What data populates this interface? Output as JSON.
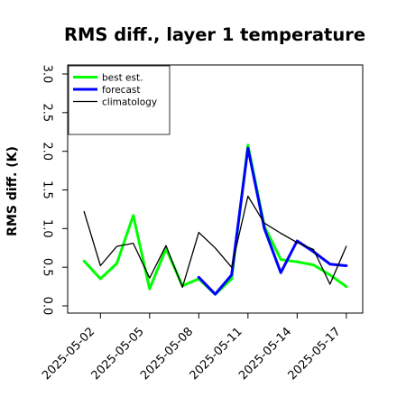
{
  "chart_data": {
    "type": "line",
    "title": "RMS diff., layer 1 temperature",
    "xlabel": "",
    "ylabel": "RMS diff. (K)",
    "x_tick_labels": [
      "2025-05-02",
      "2025-05-05",
      "2025-05-08",
      "2025-05-11",
      "2025-05-14",
      "2025-05-17"
    ],
    "highlighted_tick_label": "2025-05-08",
    "highlight_color": "#228B22",
    "y_ticks": [
      "0.0",
      "0.5",
      "1.0",
      "1.5",
      "2.0",
      "2.5",
      "3.0"
    ],
    "ylim": [
      0,
      3.05
    ],
    "xlim": [
      "2025-04-30",
      "2025-05-18"
    ],
    "legend_position": "top-left",
    "grid": false,
    "x_dates": [
      "2025-05-01",
      "2025-05-02",
      "2025-05-03",
      "2025-05-04",
      "2025-05-05",
      "2025-05-06",
      "2025-05-07",
      "2025-05-08",
      "2025-05-09",
      "2025-05-10",
      "2025-05-11",
      "2025-05-12",
      "2025-05-13",
      "2025-05-14",
      "2025-05-15",
      "2025-05-16",
      "2025-05-17"
    ],
    "series": [
      {
        "name": "best est.",
        "color": "#00ff00",
        "width": 3,
        "values": [
          0.58,
          0.35,
          0.55,
          1.17,
          0.22,
          0.74,
          0.26,
          0.35,
          0.15,
          0.35,
          2.08,
          1.03,
          0.6,
          0.57,
          0.53,
          0.4,
          0.25
        ]
      },
      {
        "name": "forecast",
        "color": "#0000ff",
        "width": 3,
        "values": [
          null,
          null,
          null,
          null,
          null,
          null,
          null,
          0.37,
          0.15,
          0.4,
          2.04,
          1.0,
          0.43,
          0.84,
          0.7,
          0.54,
          0.52
        ]
      },
      {
        "name": "climatology",
        "color": "#000000",
        "width": 1.3,
        "values": [
          1.22,
          0.52,
          0.77,
          0.81,
          0.36,
          0.78,
          0.24,
          0.95,
          0.75,
          0.5,
          1.42,
          1.07,
          0.94,
          0.82,
          0.73,
          0.28,
          0.77
        ]
      }
    ]
  }
}
